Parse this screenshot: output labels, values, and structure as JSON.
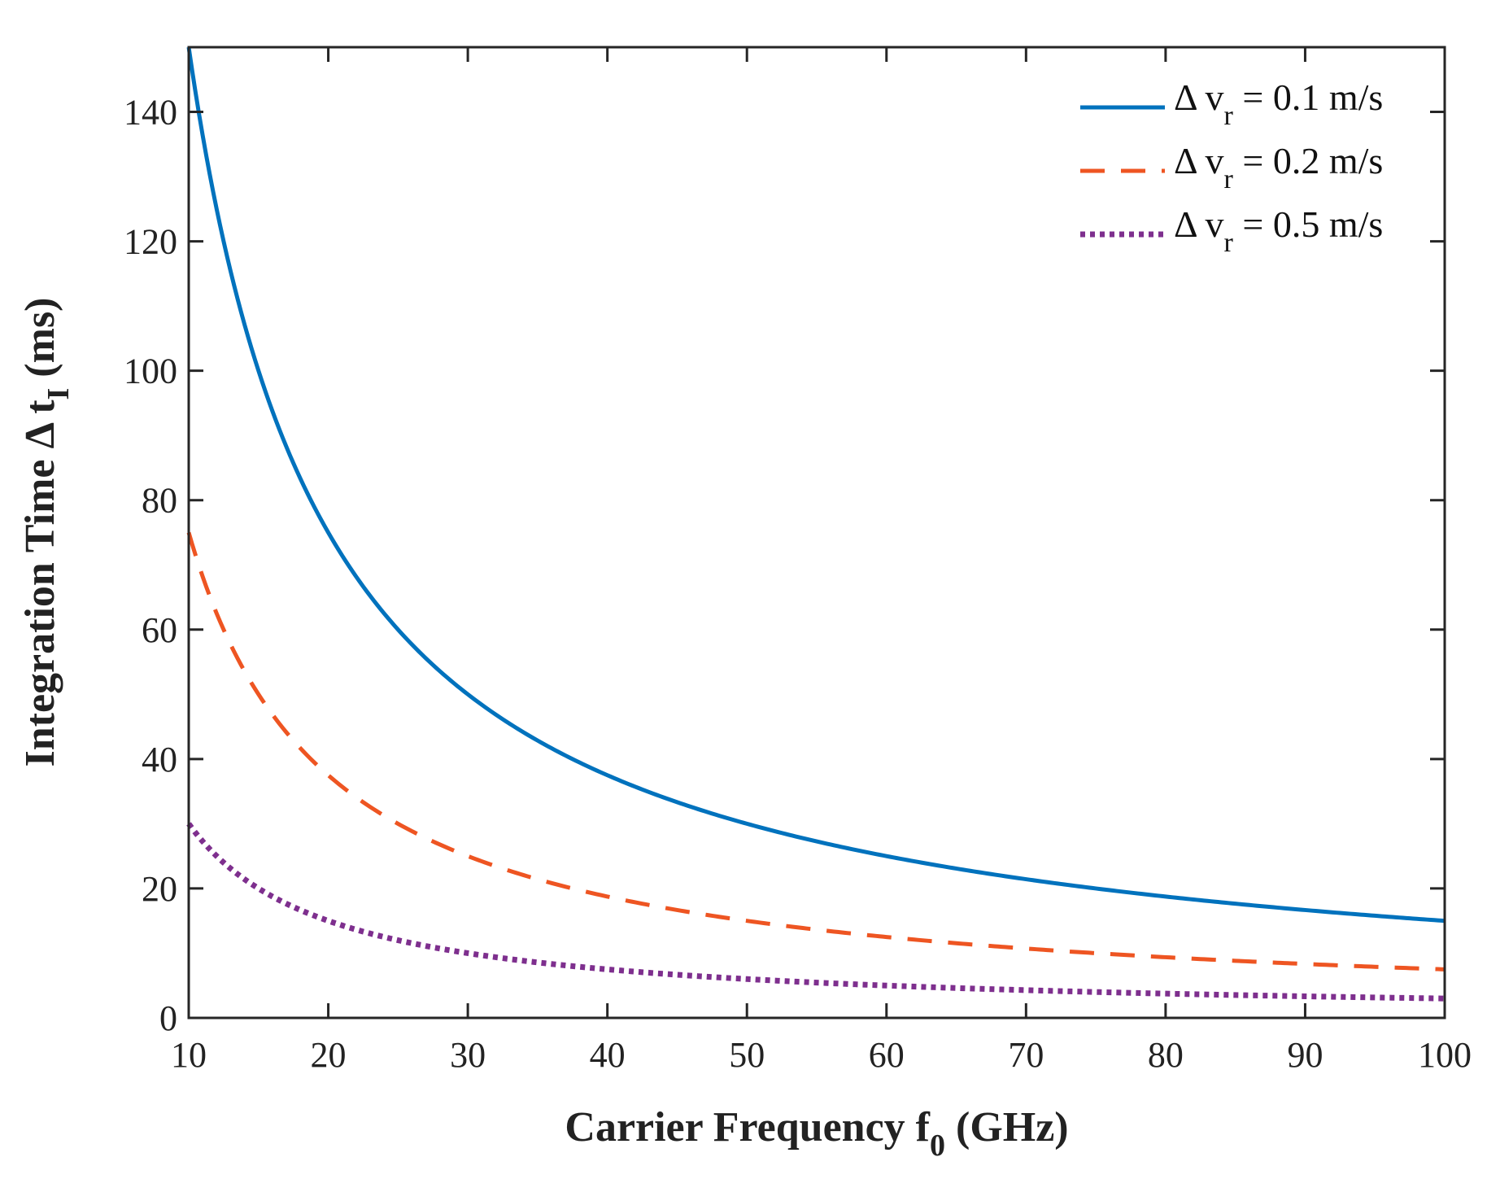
{
  "chart_data": {
    "type": "line",
    "title": "",
    "xlabel": "Carrier Frequency f",
    "xlabel_sub": "0",
    "xlabel_suffix": " (GHz)",
    "ylabel": "Integration Time Δ t",
    "ylabel_sub": "I",
    "ylabel_suffix": " (ms)",
    "xlim": [
      10,
      100
    ],
    "ylim": [
      0,
      150
    ],
    "xticks": [
      10,
      20,
      30,
      40,
      50,
      60,
      70,
      80,
      90,
      100
    ],
    "yticks": [
      0,
      20,
      40,
      60,
      80,
      100,
      120,
      140
    ],
    "grid": false,
    "legend_position": "top-right",
    "x": [
      10,
      12,
      14,
      16,
      18,
      20,
      25,
      30,
      35,
      40,
      45,
      50,
      55,
      60,
      65,
      70,
      75,
      80,
      85,
      90,
      95,
      100
    ],
    "series": [
      {
        "name": "0.1 m/s",
        "legend_prefix": "Δ v",
        "legend_sub": "r",
        "legend_suffix": " = 0.1 m/s",
        "color": "#0072BD",
        "style": "solid",
        "values": [
          150,
          125,
          107.1,
          93.8,
          83.3,
          75,
          60,
          50,
          42.9,
          37.5,
          33.3,
          30,
          27.3,
          25,
          23.1,
          21.4,
          20,
          18.8,
          17.6,
          16.7,
          15.8,
          15
        ]
      },
      {
        "name": "0.2 m/s",
        "legend_prefix": "Δ v",
        "legend_sub": "r",
        "legend_suffix": " = 0.2 m/s",
        "color": "#EE5522",
        "style": "dashed",
        "values": [
          75,
          62.5,
          53.6,
          46.9,
          41.7,
          37.5,
          30,
          25,
          21.4,
          18.8,
          16.7,
          15,
          13.6,
          12.5,
          11.5,
          10.7,
          10,
          9.4,
          8.8,
          8.3,
          7.9,
          7.5
        ]
      },
      {
        "name": "0.5 m/s",
        "legend_prefix": "Δ v",
        "legend_sub": "r",
        "legend_suffix": " = 0.5 m/s",
        "color": "#7E2F8E",
        "style": "dotted",
        "values": [
          30,
          25,
          21.4,
          18.8,
          16.7,
          15,
          12,
          10,
          8.6,
          7.5,
          6.7,
          6,
          5.5,
          5,
          4.6,
          4.3,
          4,
          3.8,
          3.5,
          3.3,
          3.2,
          3
        ]
      }
    ]
  }
}
